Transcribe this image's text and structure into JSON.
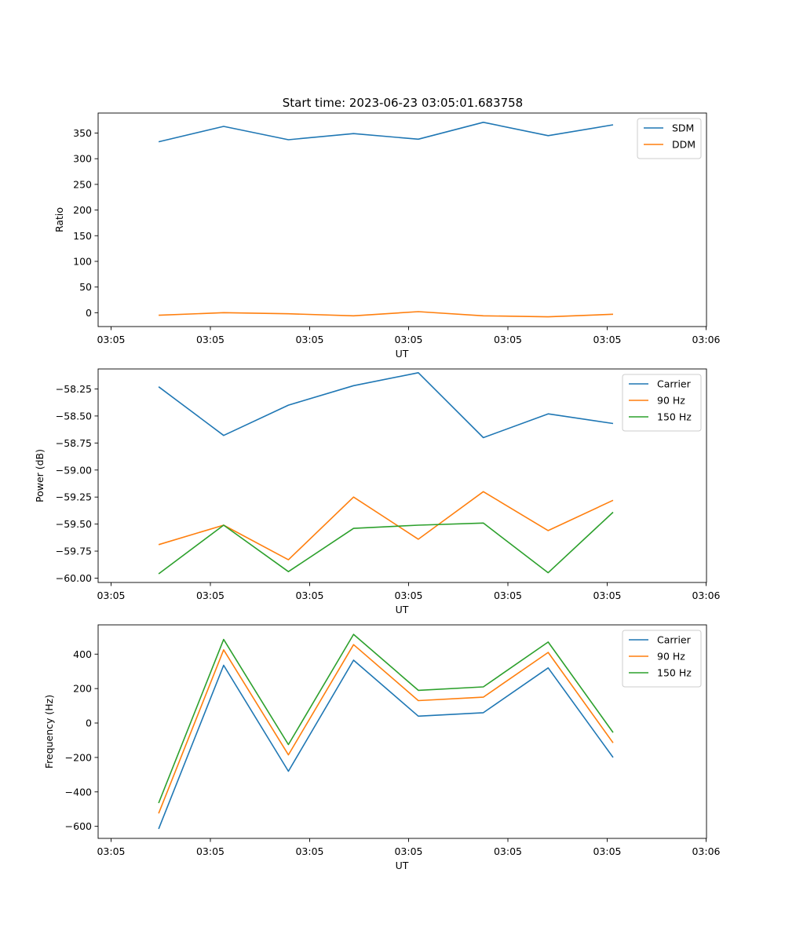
{
  "figure_title": "Start time: 2023-06-23 03:05:01.683758",
  "chart_data": [
    {
      "type": "line",
      "title": "Start time: 2023-06-23 03:05:01.683758",
      "xlabel": "UT",
      "ylabel": "Ratio",
      "x_tick_labels": [
        "03:05",
        "03:05",
        "03:05",
        "03:05",
        "03:05",
        "03:05",
        "03:06"
      ],
      "y_ticks": [
        0,
        50,
        100,
        150,
        200,
        250,
        300,
        350
      ],
      "y_tick_labels": [
        "0",
        "50",
        "100",
        "150",
        "200",
        "250",
        "300",
        "350"
      ],
      "ylim": [
        -27,
        389
      ],
      "legend_position": "top-right",
      "series": [
        {
          "name": "SDM",
          "color": "#1f77b4",
          "values": [
            333,
            363,
            337,
            349,
            338,
            371,
            345,
            366
          ]
        },
        {
          "name": "DDM",
          "color": "#ff7f0e",
          "values": [
            -5,
            0,
            -2,
            -6,
            2,
            -6,
            -8,
            -3
          ]
        }
      ]
    },
    {
      "type": "line",
      "title": "",
      "xlabel": "UT",
      "ylabel": "Power (dB)",
      "x_tick_labels": [
        "03:05",
        "03:05",
        "03:05",
        "03:05",
        "03:05",
        "03:05",
        "03:06"
      ],
      "y_ticks": [
        -60.0,
        -59.75,
        -59.5,
        -59.25,
        -59.0,
        -58.75,
        -58.5,
        -58.25
      ],
      "y_tick_labels": [
        "−60.00",
        "−59.75",
        "−59.50",
        "−59.25",
        "−59.00",
        "−58.75",
        "−58.50",
        "−58.25"
      ],
      "ylim": [
        -60.04,
        -58.065
      ],
      "legend_position": "top-right",
      "series": [
        {
          "name": "Carrier",
          "color": "#1f77b4",
          "values": [
            -58.23,
            -58.68,
            -58.4,
            -58.22,
            -58.1,
            -58.7,
            -58.48,
            -58.57
          ]
        },
        {
          "name": "90 Hz",
          "color": "#ff7f0e",
          "values": [
            -59.69,
            -59.51,
            -59.83,
            -59.25,
            -59.64,
            -59.2,
            -59.56,
            -59.28
          ]
        },
        {
          "name": "150 Hz",
          "color": "#2ca02c",
          "values": [
            -59.96,
            -59.51,
            -59.94,
            -59.54,
            -59.51,
            -59.49,
            -59.95,
            -59.39
          ]
        }
      ]
    },
    {
      "type": "line",
      "title": "",
      "xlabel": "UT",
      "ylabel": "Frequency (Hz)",
      "x_tick_labels": [
        "03:05",
        "03:05",
        "03:05",
        "03:05",
        "03:05",
        "03:05",
        "03:06"
      ],
      "y_ticks": [
        -600,
        -400,
        -200,
        0,
        200,
        400
      ],
      "y_tick_labels": [
        "−600",
        "−400",
        "−200",
        "0",
        "200",
        "400"
      ],
      "ylim": [
        -670,
        570
      ],
      "legend_position": "top-right",
      "series": [
        {
          "name": "Carrier",
          "color": "#1f77b4",
          "values": [
            -615,
            335,
            -280,
            365,
            40,
            60,
            320,
            -200
          ]
        },
        {
          "name": "90 Hz",
          "color": "#ff7f0e",
          "values": [
            -525,
            425,
            -185,
            455,
            130,
            150,
            410,
            -115
          ]
        },
        {
          "name": "150 Hz",
          "color": "#2ca02c",
          "values": [
            -465,
            485,
            -125,
            515,
            190,
            210,
            470,
            -55
          ]
        }
      ]
    }
  ]
}
